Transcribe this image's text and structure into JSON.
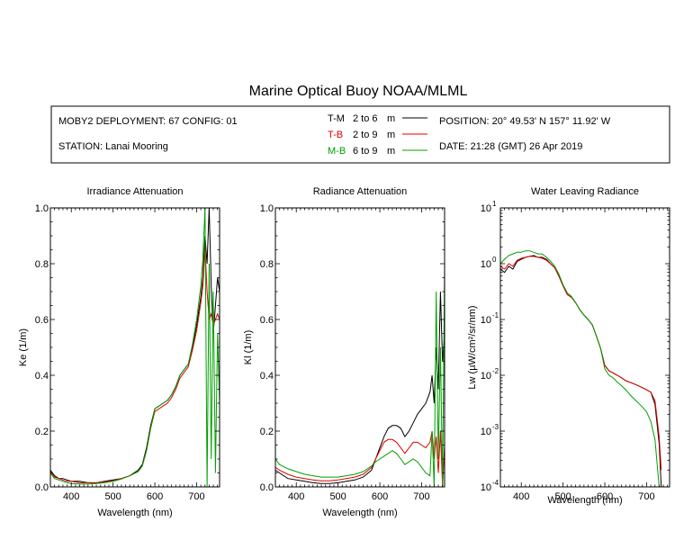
{
  "title": "Marine Optical Buoy NOAA/MLML",
  "info": {
    "deployment": "MOBY2 DEPLOYMENT: 67 CONFIG: 01",
    "station": "STATION: Lanai Mooring",
    "position": "POSITION: 20° 49.53' N   157° 11.92' W",
    "date": "DATE: 21:28 (GMT) 26 Apr 2019",
    "legend": [
      {
        "code": "T-M",
        "range": "2 to 6",
        "unit": "m",
        "color": "#000000"
      },
      {
        "code": "T-B",
        "range": "2 to 9",
        "unit": "m",
        "color": "#e00000"
      },
      {
        "code": "M-B",
        "range": "6 to 9",
        "unit": "m",
        "color": "#00a000"
      }
    ]
  },
  "chart_data": [
    {
      "type": "line",
      "title": "Irradiance Attenuation",
      "xlabel": "Wavelength (nm)",
      "ylabel": "Ke  (1/m)",
      "xlim": [
        350,
        755
      ],
      "ylim": [
        0,
        1.0
      ],
      "xticks": [
        "400",
        "500",
        "600",
        "700"
      ],
      "yticks": [
        "0.0",
        "0.2",
        "0.4",
        "0.6",
        "0.8",
        "1.0"
      ],
      "yscale": "linear",
      "series": [
        {
          "name": "T-M",
          "color": "#000000",
          "x": [
            350,
            360,
            370,
            380,
            390,
            400,
            420,
            440,
            460,
            480,
            500,
            520,
            540,
            560,
            570,
            580,
            590,
            600,
            610,
            620,
            630,
            640,
            650,
            660,
            670,
            680,
            690,
            700,
            710,
            715,
            720,
            725,
            730,
            735,
            740,
            745,
            750,
            755
          ],
          "y": [
            0.06,
            0.04,
            0.03,
            0.03,
            0.025,
            0.02,
            0.02,
            0.015,
            0.015,
            0.02,
            0.025,
            0.03,
            0.04,
            0.06,
            0.08,
            0.14,
            0.22,
            0.28,
            0.29,
            0.3,
            0.31,
            0.33,
            0.36,
            0.4,
            0.42,
            0.44,
            0.5,
            0.58,
            0.68,
            0.75,
            0.9,
            0.8,
            1.0,
            0.72,
            0.55,
            0.65,
            0.75,
            0.7
          ]
        },
        {
          "name": "T-B",
          "color": "#e00000",
          "x": [
            350,
            360,
            370,
            380,
            390,
            400,
            420,
            440,
            460,
            480,
            500,
            520,
            540,
            560,
            570,
            580,
            590,
            600,
            610,
            620,
            630,
            640,
            650,
            660,
            670,
            680,
            690,
            700,
            710,
            715,
            720,
            725,
            730,
            735,
            740,
            745,
            750,
            755
          ],
          "y": [
            0.055,
            0.035,
            0.03,
            0.025,
            0.02,
            0.02,
            0.015,
            0.015,
            0.015,
            0.018,
            0.022,
            0.03,
            0.04,
            0.055,
            0.075,
            0.13,
            0.21,
            0.27,
            0.28,
            0.29,
            0.3,
            0.32,
            0.35,
            0.39,
            0.41,
            0.43,
            0.49,
            0.56,
            0.66,
            0.72,
            0.86,
            0.7,
            0.6,
            0.62,
            0.58,
            0.6,
            0.62,
            0.6
          ]
        },
        {
          "name": "M-B",
          "color": "#00a000",
          "x": [
            350,
            360,
            370,
            380,
            390,
            400,
            420,
            440,
            460,
            480,
            500,
            520,
            540,
            560,
            570,
            580,
            590,
            600,
            610,
            620,
            630,
            640,
            650,
            660,
            670,
            680,
            690,
            700,
            710,
            715,
            720,
            725,
            730,
            735,
            740,
            745,
            750,
            755
          ],
          "y": [
            0.05,
            0.03,
            0.025,
            0.02,
            0.015,
            0.012,
            0.01,
            0.01,
            0.012,
            0.015,
            0.02,
            0.028,
            0.04,
            0.055,
            0.075,
            0.13,
            0.21,
            0.28,
            0.29,
            0.3,
            0.31,
            0.33,
            0.36,
            0.4,
            0.42,
            0.44,
            0.51,
            0.6,
            0.72,
            0.82,
            1.0,
            0.0,
            0.8,
            0.1,
            0.7,
            0.05,
            0.55,
            0.3
          ]
        }
      ]
    },
    {
      "type": "line",
      "title": "Radiance Attenuation",
      "xlabel": "Wavelength (nm)",
      "ylabel": "Kl  (1/m)",
      "xlim": [
        350,
        755
      ],
      "ylim": [
        0,
        1.0
      ],
      "xticks": [
        "400",
        "500",
        "600",
        "700"
      ],
      "yticks": [
        "0.0",
        "0.2",
        "0.4",
        "0.6",
        "0.8",
        "1.0"
      ],
      "yscale": "linear",
      "series": [
        {
          "name": "T-M",
          "color": "#000000",
          "x": [
            350,
            360,
            380,
            400,
            420,
            440,
            460,
            480,
            500,
            520,
            540,
            560,
            580,
            590,
            600,
            610,
            620,
            630,
            640,
            650,
            660,
            670,
            680,
            690,
            700,
            710,
            720,
            725,
            730,
            735,
            740,
            745,
            750,
            755
          ],
          "y": [
            0.06,
            0.05,
            0.03,
            0.025,
            0.02,
            0.015,
            0.012,
            0.012,
            0.015,
            0.02,
            0.025,
            0.035,
            0.06,
            0.1,
            0.14,
            0.18,
            0.21,
            0.22,
            0.22,
            0.21,
            0.18,
            0.2,
            0.23,
            0.26,
            0.28,
            0.3,
            0.34,
            0.4,
            0.3,
            0.5,
            0.35,
            0.7,
            0.45,
            0.55
          ]
        },
        {
          "name": "T-B",
          "color": "#e00000",
          "x": [
            350,
            360,
            380,
            400,
            420,
            440,
            460,
            480,
            500,
            520,
            540,
            560,
            580,
            590,
            600,
            610,
            620,
            630,
            640,
            650,
            660,
            670,
            680,
            690,
            700,
            710,
            720,
            725,
            730,
            735,
            740,
            745,
            750,
            755
          ],
          "y": [
            0.07,
            0.06,
            0.045,
            0.035,
            0.03,
            0.025,
            0.022,
            0.022,
            0.025,
            0.03,
            0.035,
            0.045,
            0.07,
            0.1,
            0.13,
            0.16,
            0.17,
            0.17,
            0.16,
            0.14,
            0.12,
            0.14,
            0.16,
            0.16,
            0.15,
            0.14,
            0.16,
            0.2,
            0.1,
            0.18,
            0.05,
            0.2,
            0.0,
            0.15
          ]
        },
        {
          "name": "M-B",
          "color": "#00a000",
          "x": [
            350,
            360,
            380,
            400,
            420,
            440,
            460,
            480,
            500,
            520,
            540,
            560,
            580,
            590,
            600,
            610,
            620,
            630,
            640,
            650,
            660,
            670,
            680,
            690,
            700,
            710,
            720,
            725,
            730,
            735,
            740,
            745,
            750,
            755
          ],
          "y": [
            0.1,
            0.08,
            0.065,
            0.055,
            0.045,
            0.04,
            0.035,
            0.035,
            0.035,
            0.04,
            0.045,
            0.055,
            0.075,
            0.09,
            0.1,
            0.11,
            0.12,
            0.13,
            0.12,
            0.1,
            0.08,
            0.09,
            0.1,
            0.09,
            0.07,
            0.05,
            0.04,
            0.2,
            0.0,
            0.7,
            0.1,
            0.5,
            0.0,
            0.78
          ]
        }
      ]
    },
    {
      "type": "line",
      "title": "Water Leaving Radiance",
      "xlabel": "Wavelength (nm)",
      "ylabel": "Lw  (µW/cm²/sr/nm)",
      "xlim": [
        350,
        755
      ],
      "ylim": [
        0.0001,
        10
      ],
      "xticks": [
        "400",
        "500",
        "600",
        "700"
      ],
      "yticks": [
        "10^-4",
        "10^-3",
        "10^-2",
        "10^-1",
        "10^0",
        "10^1"
      ],
      "yscale": "log",
      "series": [
        {
          "name": "T-M",
          "color": "#000000",
          "x": [
            350,
            360,
            370,
            380,
            390,
            400,
            410,
            420,
            430,
            440,
            450,
            460,
            470,
            480,
            490,
            500,
            510,
            520,
            530,
            540,
            550,
            560,
            570,
            580,
            590,
            600,
            610,
            620,
            630,
            640,
            650,
            660,
            670,
            680,
            690,
            700,
            710,
            720,
            730,
            735
          ],
          "y": [
            0.8,
            0.7,
            0.9,
            0.8,
            1.1,
            1.2,
            1.3,
            1.35,
            1.4,
            1.3,
            1.3,
            1.2,
            1.0,
            0.85,
            0.6,
            0.4,
            0.28,
            0.25,
            0.2,
            0.15,
            0.12,
            0.1,
            0.08,
            0.05,
            0.03,
            0.015,
            0.012,
            0.011,
            0.01,
            0.009,
            0.008,
            0.0075,
            0.007,
            0.0065,
            0.006,
            0.0055,
            0.005,
            0.003,
            0.0006,
            0.0001
          ]
        },
        {
          "name": "T-B",
          "color": "#e00000",
          "x": [
            350,
            360,
            370,
            380,
            390,
            400,
            410,
            420,
            430,
            440,
            450,
            460,
            470,
            480,
            490,
            500,
            510,
            520,
            530,
            540,
            550,
            560,
            570,
            580,
            590,
            600,
            610,
            620,
            630,
            640,
            650,
            660,
            670,
            680,
            690,
            700,
            710,
            720,
            730,
            735
          ],
          "y": [
            0.9,
            0.8,
            1.0,
            0.9,
            1.15,
            1.25,
            1.3,
            1.35,
            1.35,
            1.3,
            1.25,
            1.15,
            1.0,
            0.85,
            0.6,
            0.4,
            0.28,
            0.25,
            0.2,
            0.15,
            0.12,
            0.1,
            0.08,
            0.05,
            0.03,
            0.015,
            0.012,
            0.011,
            0.01,
            0.009,
            0.008,
            0.0075,
            0.007,
            0.0065,
            0.006,
            0.0055,
            0.005,
            0.0035,
            0.0008,
            0.0002
          ]
        },
        {
          "name": "M-B",
          "color": "#00a000",
          "x": [
            350,
            360,
            370,
            380,
            390,
            400,
            410,
            420,
            430,
            440,
            450,
            460,
            470,
            480,
            490,
            500,
            510,
            520,
            530,
            540,
            550,
            560,
            570,
            580,
            590,
            600,
            610,
            620,
            630,
            640,
            650,
            660,
            670,
            680,
            690,
            700,
            710,
            720,
            730
          ],
          "y": [
            1.0,
            1.2,
            1.4,
            1.5,
            1.6,
            1.6,
            1.7,
            1.7,
            1.6,
            1.5,
            1.5,
            1.3,
            1.1,
            0.9,
            0.65,
            0.42,
            0.3,
            0.26,
            0.2,
            0.15,
            0.12,
            0.1,
            0.08,
            0.05,
            0.03,
            0.013,
            0.01,
            0.009,
            0.0075,
            0.0065,
            0.0055,
            0.0045,
            0.0038,
            0.0032,
            0.0027,
            0.0022,
            0.0015,
            0.0007,
            0.0001
          ]
        }
      ]
    }
  ]
}
